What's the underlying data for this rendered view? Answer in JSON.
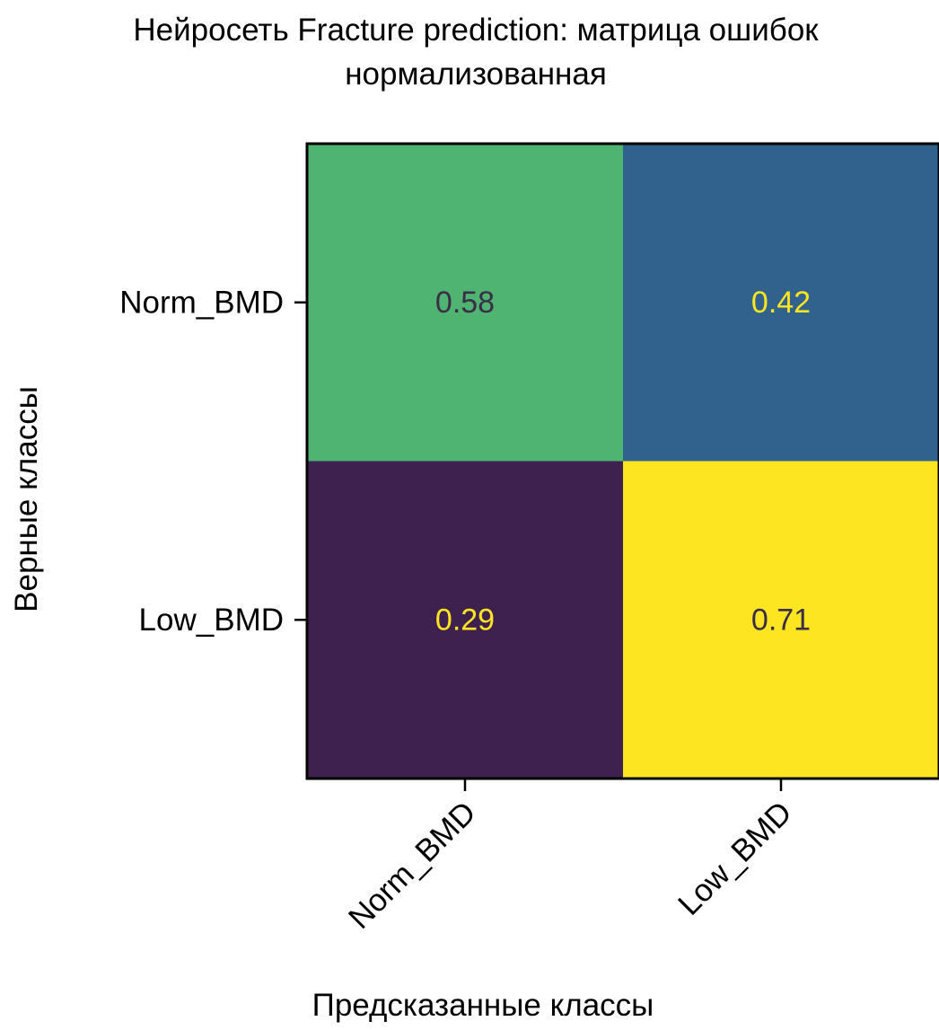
{
  "chart_data": {
    "type": "heatmap",
    "title_lines": [
      "Нейросеть Fracture prediction: матрица ошибок",
      "нормализованная"
    ],
    "xlabel": "Предсказанные классы",
    "ylabel": "Верные классы",
    "x_categories": [
      "Norm_BMD",
      "Low_BMD"
    ],
    "y_categories": [
      "Norm_BMD",
      "Low_BMD"
    ],
    "values": [
      [
        0.58,
        0.42
      ],
      [
        0.29,
        0.71
      ]
    ],
    "value_labels": [
      [
        "0.58",
        "0.42"
      ],
      [
        "0.29",
        "0.71"
      ]
    ],
    "colormap": "viridis",
    "vmin": 0.29,
    "vmax": 0.71,
    "cell_colors": [
      [
        "#4fb372",
        "#31628d"
      ],
      [
        "#3f2150",
        "#fde521"
      ]
    ],
    "label_colors": [
      [
        "#3a2e47",
        "#fde521"
      ],
      [
        "#fde521",
        "#3a2e47"
      ]
    ],
    "grid": false
  }
}
